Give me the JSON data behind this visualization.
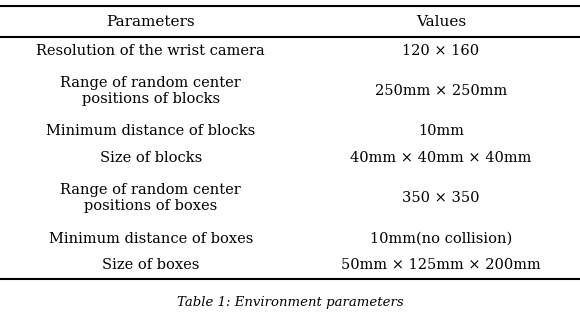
{
  "col_headers": [
    "Parameters",
    "Values"
  ],
  "rows": [
    [
      "Resolution of the wrist camera",
      "120 × 160"
    ],
    [
      "Range of random center\npositions of blocks",
      "250mm × 250mm"
    ],
    [
      "Minimum distance of blocks",
      "10mm"
    ],
    [
      "Size of blocks",
      "40mm × 40mm × 40mm"
    ],
    [
      "Range of random center\npositions of boxes",
      "350 × 350"
    ],
    [
      "Minimum distance of boxes",
      "10mm(no collision)"
    ],
    [
      "Size of boxes",
      "50mm × 125mm × 200mm"
    ]
  ],
  "caption": "Table 1: Environment parameters",
  "background_color": "#ffffff",
  "text_color": "#000000",
  "font_size": 10.5,
  "header_font_size": 11,
  "caption_font_size": 9.5
}
